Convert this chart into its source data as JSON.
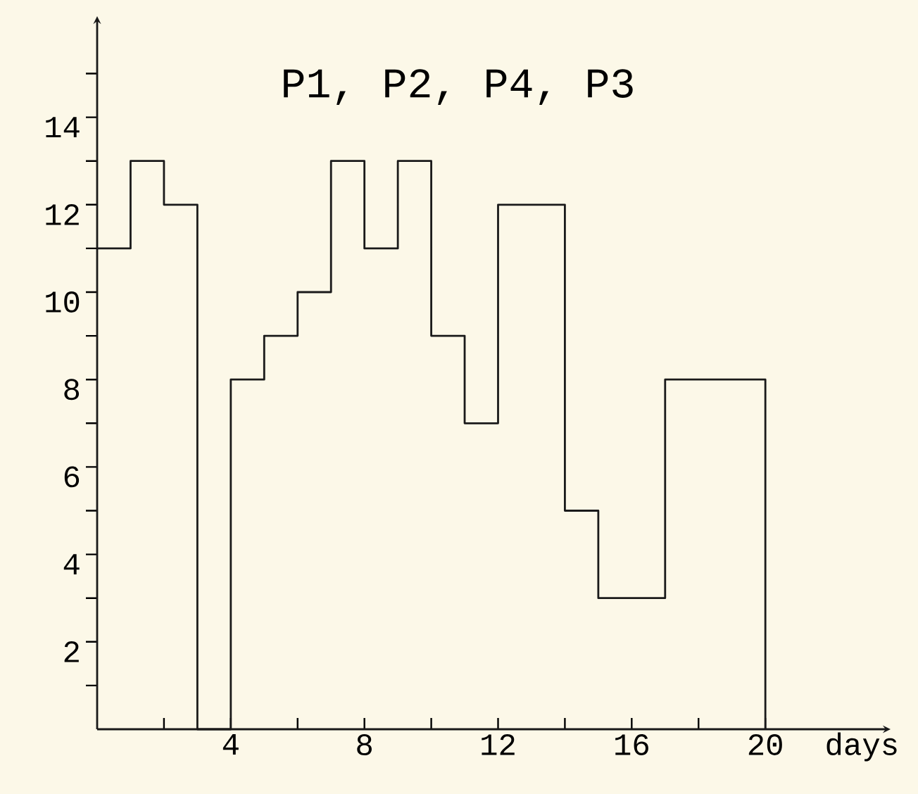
{
  "chart_data": {
    "type": "step",
    "title": "P1, P2, P4, P3",
    "xlabel": "days",
    "x": [
      0,
      1,
      2,
      3,
      4,
      5,
      6,
      7,
      8,
      9,
      10,
      11,
      12,
      14,
      15,
      17,
      20
    ],
    "series": [
      {
        "color": "#1a1a1a",
        "values": [
          11,
          13,
          12,
          0,
          8,
          9,
          10,
          13,
          11,
          13,
          9,
          7,
          12,
          5,
          3,
          8,
          0
        ]
      }
    ],
    "xlim": [
      0,
      23.6
    ],
    "ylim": [
      0,
      16.2
    ],
    "xticks": [
      {
        "value": 2,
        "label": null
      },
      4,
      {
        "value": 6,
        "label": null
      },
      8,
      {
        "value": 10,
        "label": null
      },
      12,
      {
        "value": 14,
        "label": null
      },
      16,
      {
        "value": 18,
        "label": null
      },
      20
    ],
    "yticks": [
      {
        "value": 1,
        "label": null
      },
      2,
      {
        "value": 3,
        "label": null
      },
      4,
      {
        "value": 5,
        "label": null
      },
      6,
      {
        "value": 7,
        "label": null
      },
      8,
      {
        "value": 9,
        "label": null
      },
      10,
      {
        "value": 11,
        "label": null
      },
      12,
      {
        "value": 13,
        "label": null
      },
      14,
      {
        "value": 15,
        "label": null
      }
    ],
    "grid": false,
    "marker": "none",
    "line_style": "solid"
  }
}
